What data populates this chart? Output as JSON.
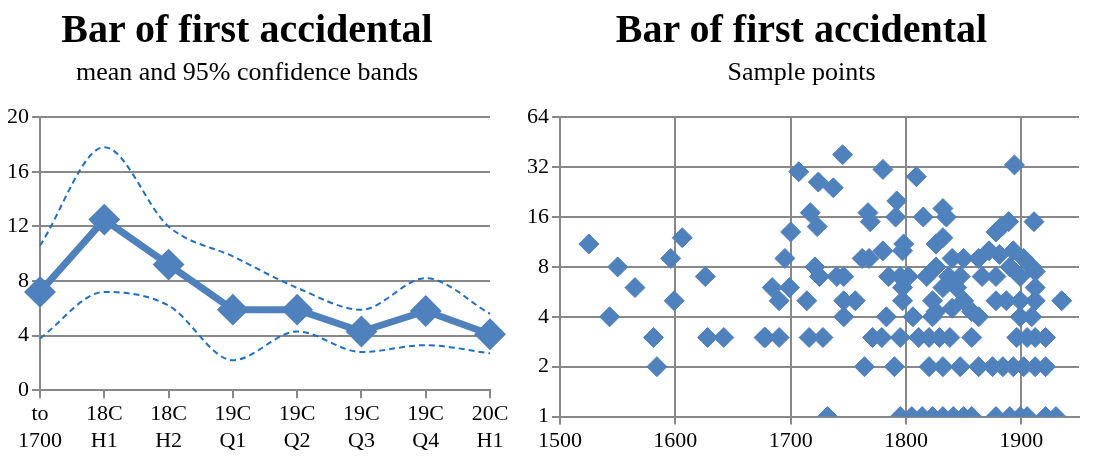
{
  "chart_data": [
    {
      "type": "line",
      "title": "Bar of first accidental",
      "subtitle": "mean and 95% confidence bands",
      "categories": [
        "to 1700",
        "18C H1",
        "18C H2",
        "19C Q1",
        "19C Q2",
        "19C Q3",
        "19C Q4",
        "20C H1"
      ],
      "series": [
        {
          "color": "#4f81bd",
          "values": [
            7.2,
            12.5,
            9.2,
            5.9,
            5.9,
            4.3,
            5.8,
            4.1
          ]
        },
        {
          "color": "#1f6fc4",
          "values": [
            10.6,
            17.8,
            12,
            9.8,
            7.5,
            5.9,
            8.2,
            5.6
          ],
          "line_style": "dashed",
          "marker": "none"
        },
        {
          "color": "#1f6fc4",
          "values": [
            3.8,
            7.2,
            6.2,
            2.2,
            4.3,
            2.8,
            3.3,
            2.7
          ],
          "line_style": "dashed",
          "marker": "none"
        }
      ],
      "ylim": [
        0,
        20
      ],
      "yticks": [
        0,
        4,
        8,
        12,
        16,
        20
      ],
      "grid": "y",
      "marker": "diamond"
    },
    {
      "type": "scatter",
      "title": "Bar of first accidental",
      "subtitle": "Sample points",
      "log": "y",
      "series": [
        {
          "color": "#4f81bd",
          "x": [
            1525,
            1550,
            1543,
            1565,
            1581,
            1584,
            1596,
            1599,
            1606,
            1626,
            1628,
            1642,
            1677,
            1745,
            1707,
            1724,
            1737,
            1780,
            1809,
            1894,
            1792,
            1717,
            1723,
            1767,
            1769,
            1791,
            1815,
            1832,
            1835,
            1700,
            1889,
            1911,
            1878,
            1883,
            1798,
            1832,
            1826,
            1695,
            1762,
            1768,
            1780,
            1797,
            1840,
            1850,
            1863,
            1872,
            1881,
            1893,
            1902,
            1909,
            1721,
            1725,
            1740,
            1746,
            1785,
            1795,
            1802,
            1818,
            1826,
            1837,
            1847,
            1866,
            1878,
            1890,
            1899,
            1912,
            1684,
            1699,
            1690,
            1714,
            1746,
            1756,
            1797,
            1797,
            1823,
            1832,
            1844,
            1826,
            1840,
            1850,
            1857,
            1878,
            1887,
            1899,
            1912,
            1935,
            1912,
            1746,
            1783,
            1806,
            1823,
            1863,
            1899,
            1909,
            1678,
            1690,
            1716,
            1728,
            1771,
            1779,
            1795,
            1811,
            1820,
            1829,
            1838,
            1857,
            1896,
            1905,
            1912,
            1921,
            1764,
            1790,
            1820,
            1832,
            1847,
            1863,
            1875,
            1884,
            1893,
            1902,
            1912,
            1921,
            1732,
            1795,
            1805,
            1814,
            1823,
            1832,
            1841,
            1850,
            1857,
            1878,
            1890,
            1899,
            1905,
            1921,
            1930
          ],
          "values": [
            11,
            8,
            4,
            6,
            3,
            2,
            9,
            5,
            12,
            7,
            3,
            3,
            3,
            38,
            30,
            26,
            24,
            31,
            28,
            33,
            20,
            17,
            14,
            17,
            15,
            16,
            16,
            18,
            16,
            13,
            15,
            15,
            13,
            14,
            11,
            12,
            11,
            9,
            9,
            9,
            10,
            10,
            9,
            9,
            9,
            10,
            9.5,
            10,
            9,
            8,
            8,
            7,
            7,
            7,
            7,
            7,
            7,
            7,
            8,
            7,
            7,
            7,
            7,
            8,
            7,
            7.5,
            6,
            6,
            5,
            5,
            5,
            5,
            5,
            6,
            5,
            6,
            6,
            4.3,
            4.5,
            5,
            4.3,
            5,
            5,
            5,
            5,
            5,
            6,
            4,
            4,
            4,
            4,
            4,
            4,
            4,
            3,
            3,
            3,
            3,
            3,
            3,
            3,
            3,
            3,
            3,
            3,
            3,
            3,
            3,
            3,
            3,
            2,
            2,
            2,
            2,
            2,
            2,
            2,
            2,
            2,
            2,
            2,
            2,
            1,
            1,
            1,
            1,
            1,
            1,
            1,
            1,
            1,
            1,
            1,
            1,
            1,
            1,
            1
          ]
        }
      ],
      "xlim": [
        1500,
        1950
      ],
      "xticks": [
        1500,
        1600,
        1700,
        1800,
        1900
      ],
      "ylim": [
        1,
        64
      ],
      "yticks": [
        1,
        2,
        4,
        8,
        16,
        32,
        64
      ],
      "grid": true,
      "marker": "diamond"
    }
  ]
}
